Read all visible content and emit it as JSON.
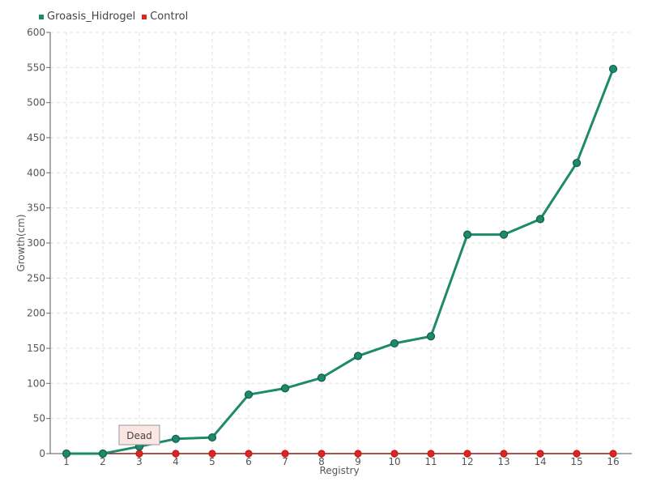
{
  "legend": [
    {
      "label": "Groasis_Hidrogel",
      "color": "#1d8a6c"
    },
    {
      "label": "Control",
      "color": "#e02424"
    }
  ],
  "tooltip": {
    "text": "Dead",
    "category": "3",
    "series": "Control"
  },
  "chart_data": {
    "type": "line",
    "title": "",
    "xlabel": "Registry",
    "ylabel": "Growth(cm)",
    "categories": [
      "1",
      "2",
      "3",
      "4",
      "5",
      "6",
      "7",
      "8",
      "9",
      "10",
      "11",
      "12",
      "13",
      "14",
      "15",
      "16"
    ],
    "ylim": [
      0,
      600
    ],
    "yticks": [
      0,
      50,
      100,
      150,
      200,
      250,
      300,
      350,
      400,
      450,
      500,
      550,
      600
    ],
    "grid": true,
    "legend_position": "top-left",
    "series": [
      {
        "name": "Groasis_Hidrogel",
        "color": "#1d8a6c",
        "values": [
          0,
          0,
          10,
          21,
          23,
          84,
          93,
          108,
          139,
          157,
          167,
          312,
          312,
          334,
          414,
          548
        ]
      },
      {
        "name": "Control",
        "color": "#e02424",
        "values": [
          0,
          0,
          0,
          0,
          0,
          0,
          0,
          0,
          0,
          0,
          0,
          0,
          0,
          0,
          0,
          0
        ]
      }
    ]
  }
}
